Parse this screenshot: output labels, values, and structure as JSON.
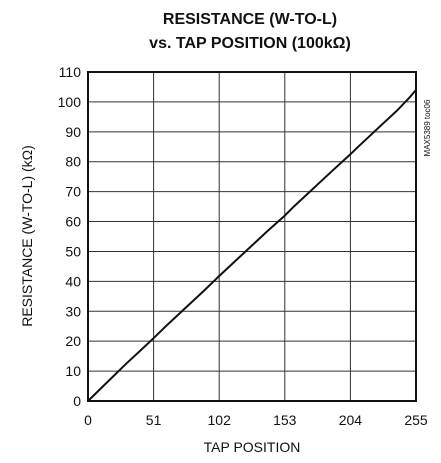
{
  "chart_data": {
    "type": "line",
    "title_line1": "RESISTANCE (W-TO-L)",
    "title_line2": "vs. TAP POSITION (100kΩ)",
    "xlabel": "TAP POSITION",
    "ylabel": "RESISTANCE (W-TO-L) (kΩ)",
    "side_label": "MAX5389 toc06",
    "xlim": [
      0,
      255
    ],
    "ylim": [
      0,
      110
    ],
    "x_ticks": [
      0,
      51,
      102,
      153,
      204,
      255
    ],
    "y_ticks": [
      0,
      10,
      20,
      30,
      40,
      50,
      60,
      70,
      80,
      90,
      100,
      110
    ],
    "grid": true,
    "series": [
      {
        "x": [
          0,
          10,
          20,
          30,
          40,
          51,
          60,
          70,
          80,
          90,
          102,
          110,
          120,
          130,
          140,
          153,
          160,
          170,
          180,
          190,
          204,
          210,
          220,
          230,
          240,
          250,
          255
        ],
        "y": [
          0,
          4.2,
          8.4,
          12.6,
          16.6,
          21.0,
          24.8,
          28.8,
          32.8,
          36.8,
          41.8,
          45.0,
          49.0,
          53.0,
          57.0,
          62.0,
          65.0,
          69.0,
          73.0,
          77.0,
          82.5,
          85.0,
          89.0,
          93.0,
          97.0,
          101.5,
          104.0
        ]
      }
    ]
  }
}
